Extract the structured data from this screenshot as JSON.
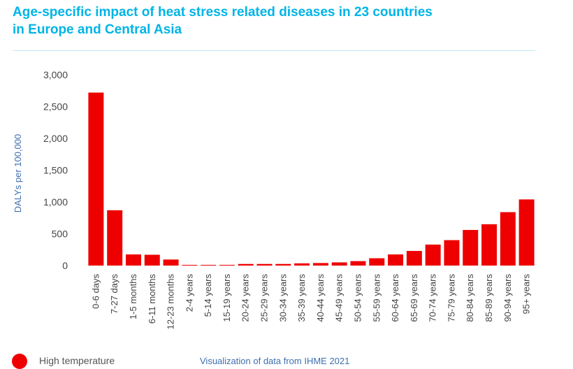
{
  "title_lines": [
    "Age-specific impact of heat stress related diseases in 23 countries",
    "in Europe and Central Asia"
  ],
  "source_note": "Visualization of data from IHME 2021",
  "colors": {
    "title": "#00b4e6",
    "bar": "#ee0000",
    "axis_label": "#3f6fb0",
    "tick": "#444444"
  },
  "chart_data": {
    "type": "bar",
    "title": "Age-specific impact of heat stress related diseases in 23 countries in Europe and Central Asia",
    "xlabel": "",
    "ylabel": "DALYs per 100,000",
    "ylim": [
      0,
      3000
    ],
    "yticks": [
      0,
      500,
      1000,
      1500,
      2000,
      2500,
      3000
    ],
    "ytick_labels": [
      "0",
      "500",
      "1,000",
      "1,500",
      "2,000",
      "2,500",
      "3,000"
    ],
    "grid": false,
    "legend": [
      {
        "label": "High temperature",
        "color": "#ee0000"
      }
    ],
    "categories": [
      "0-6 days",
      "7-27 days",
      "1-5 months",
      "6-11 months",
      "12-23 months",
      "2-4 years",
      "5-14 years",
      "15-19 years",
      "20-24 years",
      "25-29 years",
      "30-34 years",
      "35-39 years",
      "40-44 years",
      "45-49 years",
      "50-54 years",
      "55-59 years",
      "60-64 years",
      "65-69 years",
      "70-74 years",
      "75-79 years",
      "80-84 years",
      "85-89 years",
      "90-94 years",
      "95+ years"
    ],
    "series": [
      {
        "name": "High temperature",
        "values": [
          2720,
          870,
          175,
          170,
          95,
          8,
          8,
          10,
          25,
          25,
          25,
          35,
          40,
          50,
          70,
          115,
          175,
          230,
          330,
          400,
          560,
          650,
          840,
          1040
        ]
      }
    ]
  }
}
